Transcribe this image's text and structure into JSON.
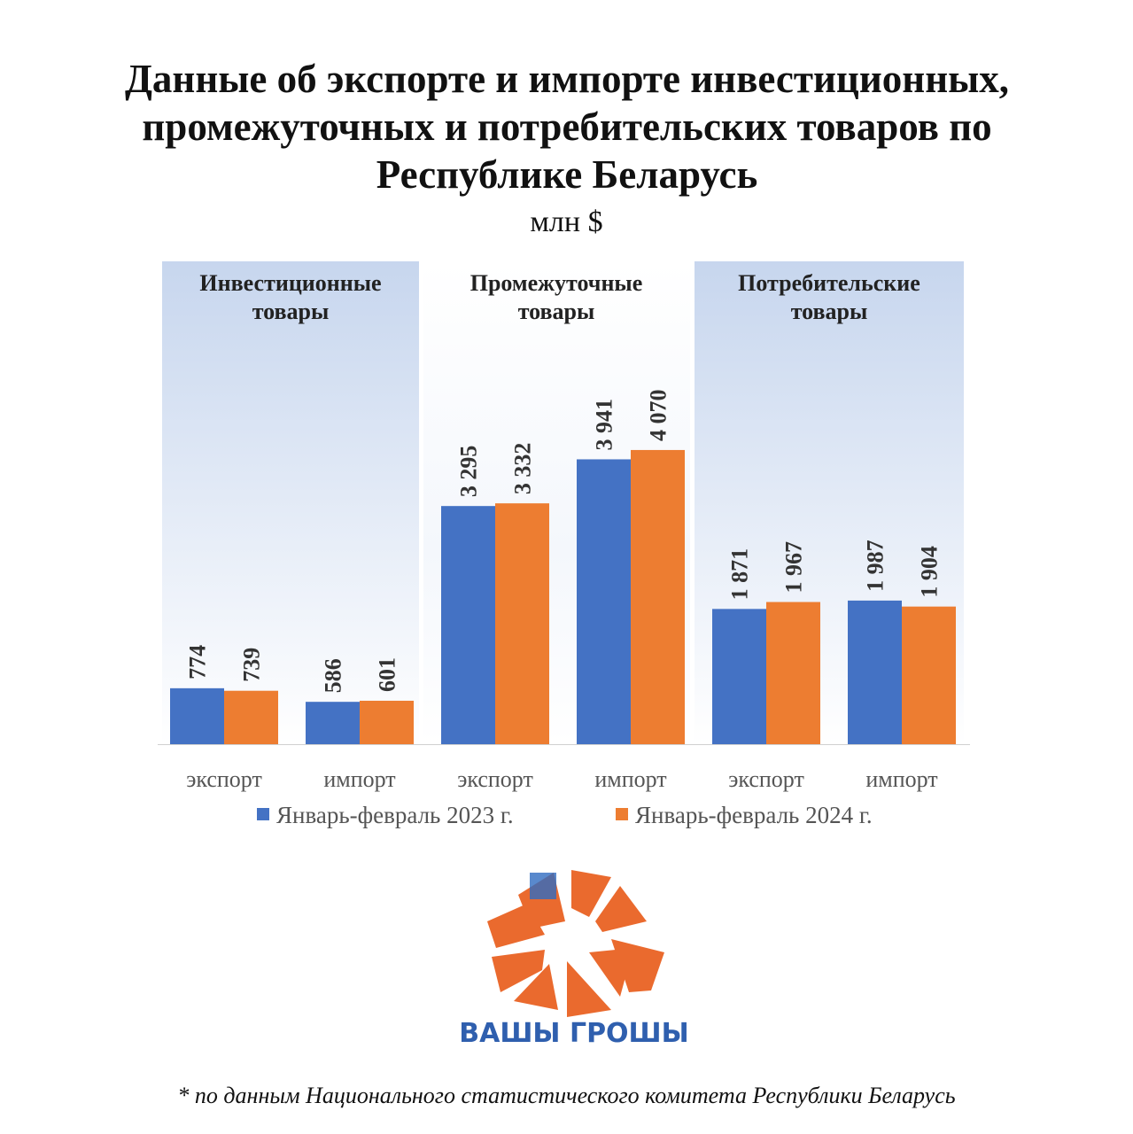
{
  "chart_data": {
    "type": "bar",
    "title": "Данные об экспорте и импорте инвестиционных, промежуточных и потребительских товаров по Республике Беларусь",
    "subtitle": "млн $",
    "groups": [
      "Инвестиционные товары",
      "Промежуточные товары",
      "Потребительские товары"
    ],
    "categories": [
      "экспорт",
      "импорт",
      "экспорт",
      "импорт",
      "экспорт",
      "импорт"
    ],
    "series": [
      {
        "name": "Январь-февраль 2023 г.",
        "color": "#4472c4",
        "values": [
          774,
          586,
          3295,
          3941,
          1871,
          1987
        ],
        "value_labels": [
          "774",
          "586",
          "3 295",
          "3 941",
          "1 871",
          "1 987"
        ]
      },
      {
        "name": "Январь-февраль 2024 г.",
        "color": "#ed7d31",
        "values": [
          739,
          601,
          3332,
          4070,
          1967,
          1904
        ],
        "value_labels": [
          "739",
          "601",
          "3 332",
          "4 070",
          "1 967",
          "1 904"
        ]
      }
    ],
    "ylim": [
      0,
      6680
    ]
  },
  "logo_text": "ВАШЫ ГРОШЫ",
  "footnote": "* по данным Национального статистического комитета Республики Беларусь"
}
